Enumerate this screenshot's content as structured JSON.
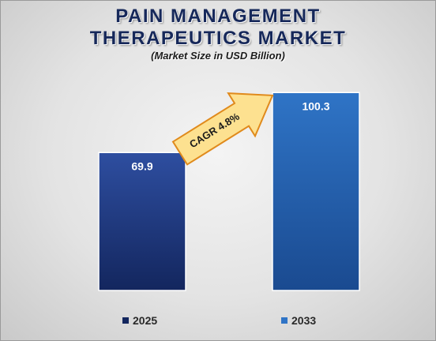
{
  "title_line1": "PAIN MANAGEMENT",
  "title_line2": "THERAPEUTICS MARKET",
  "subtitle": "(Market Size in USD Billion)",
  "cagr_label": "CAGR 4.8%",
  "colors": {
    "title": "#16285a",
    "bar_2025_top": "#2e4ea0",
    "bar_2025_bottom": "#13265e",
    "bar_2033_top": "#2f74c6",
    "bar_2033_bottom": "#1a4a90",
    "arrow_fill": "#fde190",
    "arrow_stroke": "#e08a1c"
  },
  "chart_data": {
    "type": "bar",
    "title": "PAIN MANAGEMENT THERAPEUTICS MARKET",
    "subtitle": "(Market Size in USD Billion)",
    "categories": [
      "2025",
      "2033"
    ],
    "values": [
      69.9,
      100.3
    ],
    "data_labels": [
      "69.9",
      "100.3"
    ],
    "legend": [
      "2025",
      "2033"
    ],
    "legend_position": "bottom",
    "annotation": "CAGR 4.8%",
    "ylim": [
      0,
      110
    ],
    "grid": false
  }
}
